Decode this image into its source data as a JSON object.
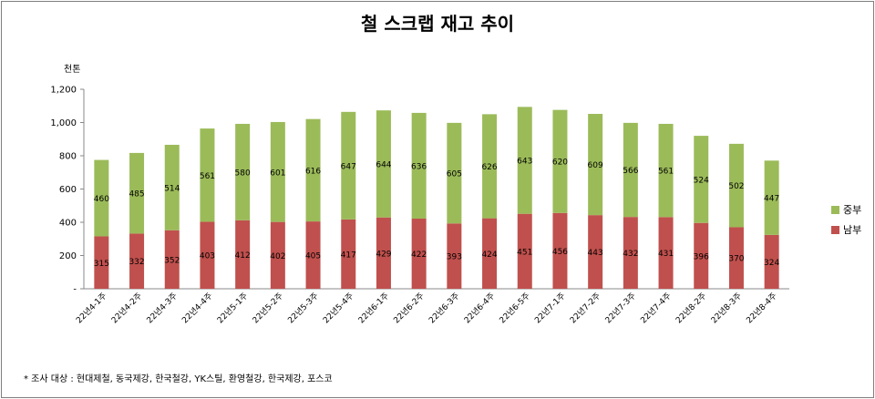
{
  "chart_data": {
    "type": "bar",
    "stacked": true,
    "title": "철 스크랩 재고 추이",
    "ylabel": "천톤",
    "ylim": [
      0,
      1200
    ],
    "ytick_values": [
      0,
      200,
      400,
      600,
      800,
      1000,
      1200
    ],
    "ytick_labels": [
      "-",
      "200",
      "400",
      "600",
      "800",
      "1,000",
      "1,200"
    ],
    "grid": false,
    "legend_position": "right",
    "categories": [
      "22년4-1주",
      "22년4-2주",
      "22년4-3주",
      "22년4-4주",
      "22년5-1주",
      "22년5-2주",
      "22년5-3주",
      "22년5-4주",
      "22년6-1주",
      "22년6-2주",
      "22년6-3주",
      "22년6-4주",
      "22년6-5주",
      "22년7-1주",
      "22년7-2주",
      "22년7-3주",
      "22년7-4주",
      "22년8-2주",
      "22년8-3주",
      "22년8-4주"
    ],
    "series": [
      {
        "name": "남부",
        "color": "#c0504d",
        "values": [
          315,
          332,
          352,
          403,
          412,
          402,
          405,
          417,
          429,
          422,
          393,
          424,
          451,
          456,
          443,
          432,
          431,
          396,
          370,
          324
        ]
      },
      {
        "name": "중부",
        "color": "#9bbb59",
        "values": [
          460,
          485,
          514,
          561,
          580,
          601,
          616,
          647,
          644,
          636,
          605,
          626,
          643,
          620,
          609,
          566,
          561,
          524,
          502,
          447
        ]
      }
    ],
    "footnote": "* 조사 대상 : 현대제철, 동국제강, 한국철강, YK스틸, 환영철강, 한국제강, 포스코"
  }
}
